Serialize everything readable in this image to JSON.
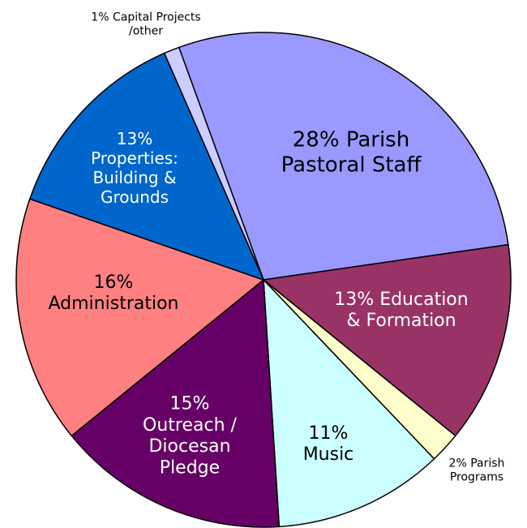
{
  "chart_data": {
    "type": "pie",
    "categories": [
      [
        "Parish",
        "Pastoral Staff"
      ],
      [
        "Education",
        "& Formation"
      ],
      [
        "Parish",
        "Programs"
      ],
      [
        "Music"
      ],
      [
        "Outreach /",
        "Diocesan",
        "Pledge"
      ],
      [
        "Administration"
      ],
      [
        "Properties:",
        "Building &",
        "Grounds"
      ],
      [
        "Capital Projects",
        "/other"
      ]
    ],
    "values": [
      28,
      13,
      2,
      11,
      15,
      16,
      13,
      1
    ],
    "value_labels": [
      "28%",
      "13%",
      "2%",
      "11%",
      "15%",
      "16%",
      "13%",
      "1%"
    ],
    "colors": [
      "#9999ff",
      "#993366",
      "#ffffcc",
      "#ccffff",
      "#660066",
      "#ff8080",
      "#0066cc",
      "#ccccff"
    ]
  }
}
